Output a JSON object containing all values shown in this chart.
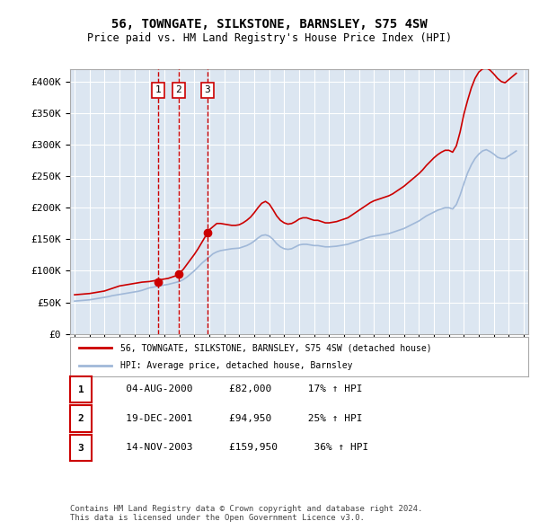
{
  "title": "56, TOWNGATE, SILKSTONE, BARNSLEY, S75 4SW",
  "subtitle": "Price paid vs. HM Land Registry's House Price Index (HPI)",
  "ylabel": "",
  "background_color": "#dce6f1",
  "plot_bg_color": "#dce6f1",
  "fig_bg_color": "#ffffff",
  "ylim": [
    0,
    420000
  ],
  "yticks": [
    0,
    50000,
    100000,
    150000,
    200000,
    250000,
    300000,
    350000,
    400000
  ],
  "ytick_labels": [
    "£0",
    "£50K",
    "£100K",
    "£150K",
    "£200K",
    "£250K",
    "£300K",
    "£350K",
    "£400K"
  ],
  "sale_dates": [
    "2000-08-04",
    "2001-12-19",
    "2003-11-14"
  ],
  "sale_prices": [
    82000,
    94950,
    159950
  ],
  "sale_labels": [
    "1",
    "2",
    "3"
  ],
  "legend_line1": "56, TOWNGATE, SILKSTONE, BARNSLEY, S75 4SW (detached house)",
  "legend_line2": "HPI: Average price, detached house, Barnsley",
  "table_rows": [
    [
      "1",
      "04-AUG-2000",
      "£82,000",
      "17% ↑ HPI"
    ],
    [
      "2",
      "19-DEC-2001",
      "£94,950",
      "25% ↑ HPI"
    ],
    [
      "3",
      "14-NOV-2003",
      "£159,950",
      "36% ↑ HPI"
    ]
  ],
  "footer": "Contains HM Land Registry data © Crown copyright and database right 2024.\nThis data is licensed under the Open Government Licence v3.0.",
  "hpi_color": "#a0b8d8",
  "price_color": "#cc0000",
  "sale_marker_color": "#cc0000",
  "dashed_line_color": "#cc0000",
  "grid_color": "#ffffff",
  "hpi_data_x": [
    1995.0,
    1995.25,
    1995.5,
    1995.75,
    1996.0,
    1996.25,
    1996.5,
    1996.75,
    1997.0,
    1997.25,
    1997.5,
    1997.75,
    1998.0,
    1998.25,
    1998.5,
    1998.75,
    1999.0,
    1999.25,
    1999.5,
    1999.75,
    2000.0,
    2000.25,
    2000.5,
    2000.75,
    2001.0,
    2001.25,
    2001.5,
    2001.75,
    2002.0,
    2002.25,
    2002.5,
    2002.75,
    2003.0,
    2003.25,
    2003.5,
    2003.75,
    2004.0,
    2004.25,
    2004.5,
    2004.75,
    2005.0,
    2005.25,
    2005.5,
    2005.75,
    2006.0,
    2006.25,
    2006.5,
    2006.75,
    2007.0,
    2007.25,
    2007.5,
    2007.75,
    2008.0,
    2008.25,
    2008.5,
    2008.75,
    2009.0,
    2009.25,
    2009.5,
    2009.75,
    2010.0,
    2010.25,
    2010.5,
    2010.75,
    2011.0,
    2011.25,
    2011.5,
    2011.75,
    2012.0,
    2012.25,
    2012.5,
    2012.75,
    2013.0,
    2013.25,
    2013.5,
    2013.75,
    2014.0,
    2014.25,
    2014.5,
    2014.75,
    2015.0,
    2015.25,
    2015.5,
    2015.75,
    2016.0,
    2016.25,
    2016.5,
    2016.75,
    2017.0,
    2017.25,
    2017.5,
    2017.75,
    2018.0,
    2018.25,
    2018.5,
    2018.75,
    2019.0,
    2019.25,
    2019.5,
    2019.75,
    2020.0,
    2020.25,
    2020.5,
    2020.75,
    2021.0,
    2021.25,
    2021.5,
    2021.75,
    2022.0,
    2022.25,
    2022.5,
    2022.75,
    2023.0,
    2023.25,
    2023.5,
    2023.75,
    2024.0,
    2024.25,
    2024.5
  ],
  "hpi_data_y": [
    52000,
    52500,
    53000,
    53500,
    54000,
    55000,
    56000,
    57000,
    58000,
    59000,
    60500,
    61500,
    62500,
    63500,
    64500,
    65500,
    66500,
    67500,
    69000,
    71000,
    73000,
    74000,
    75500,
    76500,
    77500,
    78500,
    80000,
    81500,
    83000,
    86000,
    90000,
    95000,
    100000,
    106000,
    112000,
    117000,
    122000,
    127000,
    130000,
    132000,
    133000,
    134000,
    135000,
    135500,
    136000,
    138000,
    140000,
    143000,
    147000,
    152000,
    156000,
    157000,
    155000,
    150000,
    143000,
    138000,
    135000,
    134000,
    135000,
    138000,
    141000,
    142000,
    142000,
    141000,
    140000,
    140000,
    139000,
    138000,
    138000,
    138500,
    139000,
    140000,
    141000,
    142000,
    144000,
    146000,
    148000,
    150000,
    152000,
    154000,
    155000,
    156000,
    157000,
    158000,
    159000,
    161000,
    163000,
    165000,
    167000,
    170000,
    173000,
    176000,
    179000,
    183000,
    187000,
    190000,
    193000,
    196000,
    198000,
    200000,
    200000,
    198000,
    205000,
    220000,
    238000,
    255000,
    268000,
    278000,
    285000,
    290000,
    292000,
    289000,
    285000,
    280000,
    278000,
    278000,
    282000,
    286000,
    290000
  ],
  "price_line_x": [
    1995.0,
    1995.25,
    1995.5,
    1995.75,
    1996.0,
    1996.25,
    1996.5,
    1996.75,
    1997.0,
    1997.25,
    1997.5,
    1997.75,
    1998.0,
    1998.25,
    1998.5,
    1998.75,
    1999.0,
    1999.25,
    1999.5,
    1999.75,
    2000.0,
    2000.25,
    2000.5,
    2000.75,
    2001.0,
    2001.25,
    2001.5,
    2001.75,
    2002.0,
    2002.25,
    2002.5,
    2002.75,
    2003.0,
    2003.25,
    2003.5,
    2003.75,
    2004.0,
    2004.25,
    2004.5,
    2004.75,
    2005.0,
    2005.25,
    2005.5,
    2005.75,
    2006.0,
    2006.25,
    2006.5,
    2006.75,
    2007.0,
    2007.25,
    2007.5,
    2007.75,
    2008.0,
    2008.25,
    2008.5,
    2008.75,
    2009.0,
    2009.25,
    2009.5,
    2009.75,
    2010.0,
    2010.25,
    2010.5,
    2010.75,
    2011.0,
    2011.25,
    2011.5,
    2011.75,
    2012.0,
    2012.25,
    2012.5,
    2012.75,
    2013.0,
    2013.25,
    2013.5,
    2013.75,
    2014.0,
    2014.25,
    2014.5,
    2014.75,
    2015.0,
    2015.25,
    2015.5,
    2015.75,
    2016.0,
    2016.25,
    2016.5,
    2016.75,
    2017.0,
    2017.25,
    2017.5,
    2017.75,
    2018.0,
    2018.25,
    2018.5,
    2018.75,
    2019.0,
    2019.25,
    2019.5,
    2019.75,
    2020.0,
    2020.25,
    2020.5,
    2020.75,
    2021.0,
    2021.25,
    2021.5,
    2021.75,
    2022.0,
    2022.25,
    2022.5,
    2022.75,
    2023.0,
    2023.25,
    2023.5,
    2023.75,
    2024.0,
    2024.25,
    2024.5
  ],
  "price_line_y": [
    62000,
    62500,
    63000,
    63500,
    64000,
    65000,
    66000,
    67000,
    68000,
    70000,
    72000,
    74000,
    76000,
    77000,
    78000,
    79000,
    80000,
    81000,
    82000,
    82500,
    83000,
    84000,
    85000,
    86000,
    87000,
    88000,
    90000,
    92000,
    96000,
    102000,
    110000,
    118000,
    126000,
    135000,
    145000,
    155000,
    165000,
    170000,
    175000,
    175000,
    174000,
    173000,
    172000,
    172000,
    173000,
    176000,
    180000,
    185000,
    192000,
    200000,
    207000,
    210000,
    206000,
    197000,
    187000,
    180000,
    176000,
    174000,
    175000,
    178000,
    182000,
    184000,
    184000,
    182000,
    180000,
    180000,
    178000,
    176000,
    176000,
    177000,
    178000,
    180000,
    182000,
    184000,
    188000,
    192000,
    196000,
    200000,
    204000,
    208000,
    211000,
    213000,
    215000,
    217000,
    219000,
    222000,
    226000,
    230000,
    234000,
    239000,
    244000,
    249000,
    254000,
    260000,
    267000,
    273000,
    279000,
    284000,
    288000,
    291000,
    291000,
    288000,
    298000,
    320000,
    348000,
    370000,
    390000,
    405000,
    415000,
    420000,
    422000,
    418000,
    412000,
    405000,
    400000,
    398000,
    403000,
    408000,
    413000
  ]
}
